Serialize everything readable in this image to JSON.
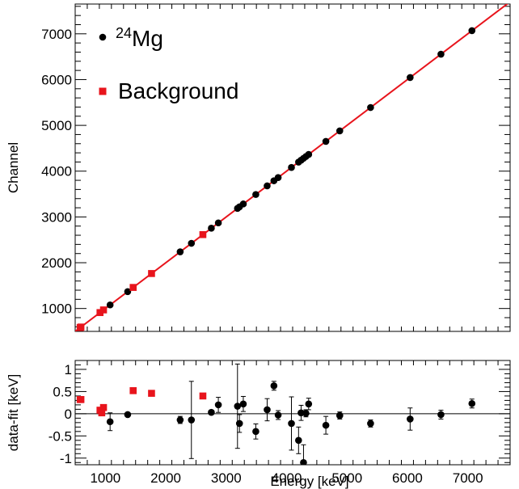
{
  "chart_data": [
    {
      "type": "scatter",
      "xlabel": "",
      "ylabel": "Channel",
      "xlim": [
        500,
        7700
      ],
      "ylim": [
        500,
        7650
      ],
      "xticks": [
        1000,
        2000,
        3000,
        4000,
        5000,
        6000,
        7000
      ],
      "yticks": [
        1000,
        2000,
        3000,
        4000,
        5000,
        6000,
        7000
      ],
      "legend": {
        "placement": "top-left",
        "entries": [
          {
            "series": "mg24",
            "base": "Mg",
            "superscript": "24"
          },
          {
            "series": "background",
            "label": "Background"
          }
        ]
      },
      "fit_line": {
        "color": "#e8141c",
        "x": [
          500,
          7700
        ],
        "y": [
          500,
          7700
        ]
      },
      "series": [
        {
          "key": "mg24",
          "name": "24Mg",
          "color": "#000000",
          "marker": "circle",
          "points": [
            [
              1078,
              1078
            ],
            [
              1369,
              1369
            ],
            [
              2238,
              2238
            ],
            [
              2424,
              2424
            ],
            [
              2754,
              2754
            ],
            [
              2870,
              2870
            ],
            [
              3187,
              3187
            ],
            [
              3220,
              3220
            ],
            [
              3283,
              3283
            ],
            [
              3490,
              3490
            ],
            [
              3678,
              3678
            ],
            [
              3790,
              3790
            ],
            [
              3860,
              3860
            ],
            [
              4080,
              4080
            ],
            [
              4198,
              4198
            ],
            [
              4240,
              4240
            ],
            [
              4280,
              4280
            ],
            [
              4320,
              4320
            ],
            [
              4365,
              4365
            ],
            [
              4650,
              4650
            ],
            [
              4880,
              4880
            ],
            [
              5390,
              5390
            ],
            [
              6045,
              6045
            ],
            [
              6555,
              6555
            ],
            [
              7068,
              7068
            ]
          ]
        },
        {
          "key": "background",
          "name": "Background",
          "color": "#e8141c",
          "marker": "square",
          "points": [
            [
              583,
              583
            ],
            [
              595,
              595
            ],
            [
              911,
              911
            ],
            [
              969,
              969
            ],
            [
              1460,
              1460
            ],
            [
              1764,
              1764
            ],
            [
              2614,
              2614
            ]
          ]
        }
      ]
    },
    {
      "type": "scatter",
      "xlabel": "Energy [keV]",
      "ylabel": "data-fit [keV]",
      "xlim": [
        500,
        7700
      ],
      "ylim": [
        -1.15,
        1.2
      ],
      "xticks": [
        1000,
        2000,
        3000,
        4000,
        5000,
        6000,
        7000
      ],
      "yticks": [
        1,
        0.5,
        0,
        -0.5,
        -1
      ],
      "ytick_labels": [
        "1",
        "0.5",
        "0",
        "-0.5",
        "-1"
      ],
      "zero_line": true,
      "series": [
        {
          "key": "mg24",
          "name": "24Mg",
          "color": "#000000",
          "marker": "circle",
          "points": [
            {
              "x": 1078,
              "y": -0.18,
              "err": 0.2
            },
            {
              "x": 1369,
              "y": -0.02,
              "err": 0.04
            },
            {
              "x": 2238,
              "y": -0.14,
              "err": 0.08
            },
            {
              "x": 2424,
              "y": -0.14,
              "err": 0.87
            },
            {
              "x": 2754,
              "y": 0.03,
              "err": 0.04
            },
            {
              "x": 2870,
              "y": 0.2,
              "err": 0.17
            },
            {
              "x": 3187,
              "y": 0.17,
              "err": 0.95
            },
            {
              "x": 3220,
              "y": -0.22,
              "err": 0.2
            },
            {
              "x": 3283,
              "y": 0.22,
              "err": 0.17
            },
            {
              "x": 3490,
              "y": -0.4,
              "err": 0.17
            },
            {
              "x": 3678,
              "y": 0.09,
              "err": 0.25
            },
            {
              "x": 3790,
              "y": 0.63,
              "err": 0.1
            },
            {
              "x": 3860,
              "y": -0.03,
              "err": 0.1
            },
            {
              "x": 4080,
              "y": -0.22,
              "err": 0.6
            },
            {
              "x": 4198,
              "y": -0.6,
              "err": 0.3
            },
            {
              "x": 4240,
              "y": 0.02,
              "err": 0.17
            },
            {
              "x": 4280,
              "y": -1.1,
              "err": 0.4
            },
            {
              "x": 4320,
              "y": 0.01,
              "err": 0.08
            },
            {
              "x": 4365,
              "y": 0.22,
              "err": 0.13
            },
            {
              "x": 4650,
              "y": -0.26,
              "err": 0.2
            },
            {
              "x": 4880,
              "y": -0.04,
              "err": 0.08
            },
            {
              "x": 5390,
              "y": -0.22,
              "err": 0.08
            },
            {
              "x": 6045,
              "y": -0.12,
              "err": 0.25
            },
            {
              "x": 6555,
              "y": -0.02,
              "err": 0.1
            },
            {
              "x": 7068,
              "y": 0.23,
              "err": 0.1
            }
          ]
        },
        {
          "key": "background",
          "name": "Background",
          "color": "#e8141c",
          "marker": "square",
          "points": [
            {
              "x": 583,
              "y": 0.32,
              "err": 0
            },
            {
              "x": 595,
              "y": 0.32,
              "err": 0
            },
            {
              "x": 911,
              "y": 0.08,
              "err": 0
            },
            {
              "x": 940,
              "y": 0.02,
              "err": 0
            },
            {
              "x": 969,
              "y": 0.14,
              "err": 0
            },
            {
              "x": 1460,
              "y": 0.52,
              "err": 0
            },
            {
              "x": 1764,
              "y": 0.46,
              "err": 0
            },
            {
              "x": 2614,
              "y": 0.4,
              "err": 0
            }
          ]
        }
      ]
    }
  ]
}
